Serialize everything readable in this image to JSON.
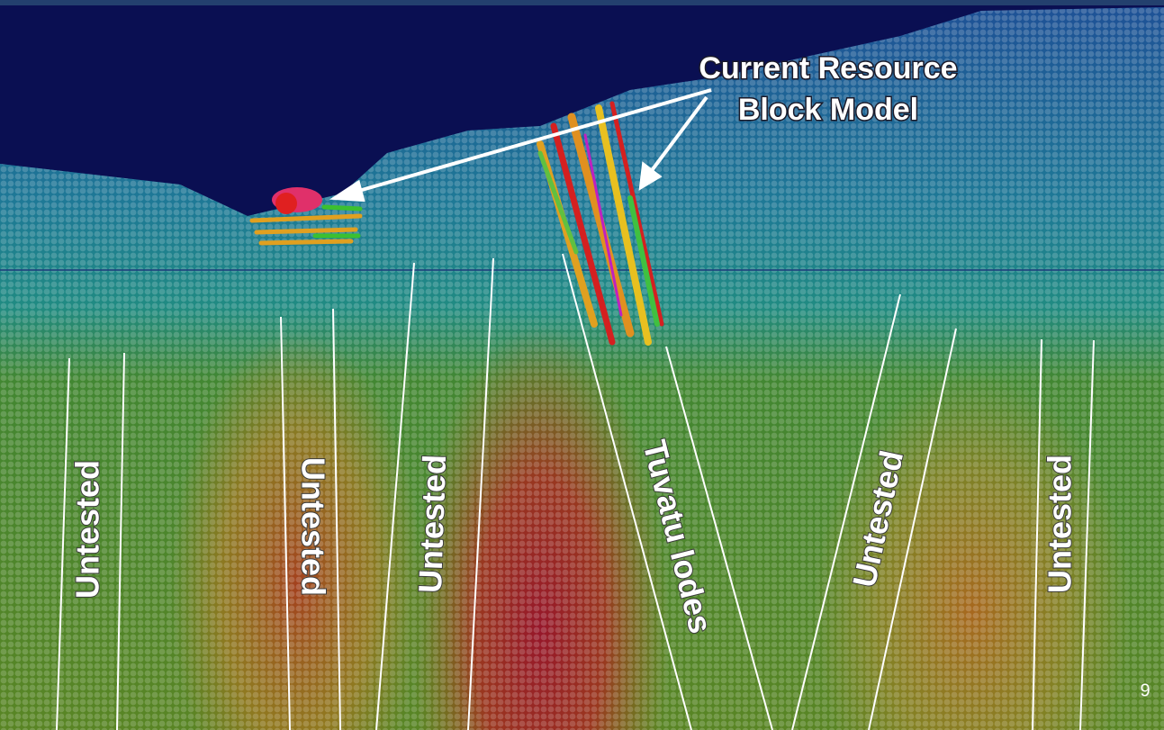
{
  "annotation": [
    "Current Resource",
    "Block Model"
  ],
  "zone_labels": [
    "Untested",
    "Untested",
    "Untested",
    "Tuvatu lodes",
    "Untested",
    "Untested"
  ],
  "page_number": "9"
}
